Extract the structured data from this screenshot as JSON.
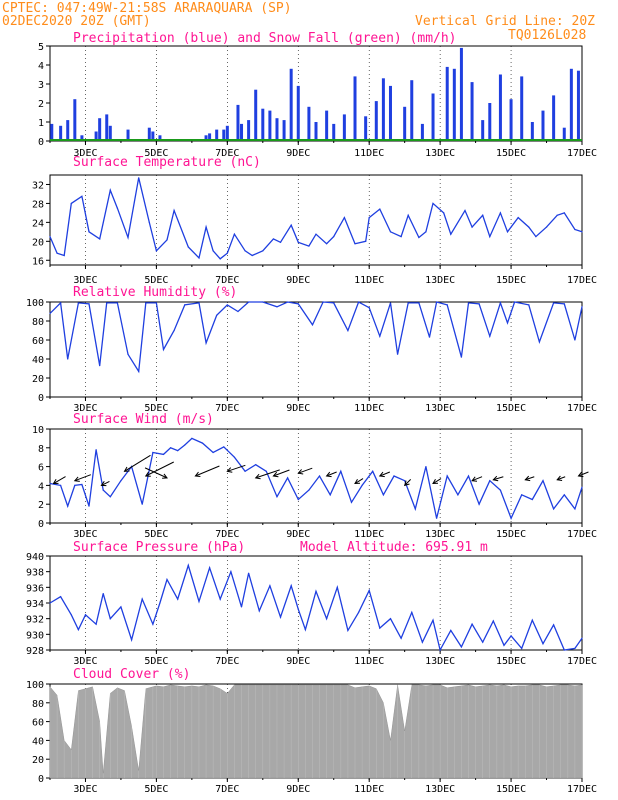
{
  "header": {
    "line1": "CPTEC:   047:49W-21:58S   ARARAQUARA (SP)",
    "line2": "02DEC2020 20Z (GMT)",
    "grid_note": "Vertical Grid Line: 20Z",
    "code": "TQ0126L028"
  },
  "x_labels": [
    "3DEC",
    "5DEC",
    "7DEC",
    "9DEC",
    "11DEC",
    "13DEC",
    "15DEC",
    "17DEC"
  ],
  "colors": {
    "header": "#ff8c1a",
    "title": "#ff1493",
    "line": "#1f3fe0",
    "bar": "#1f3fe0",
    "snow": "#1a9a1a",
    "cloud": "#a8a8a8"
  },
  "chart_data": [
    {
      "id": "precip",
      "type": "bar",
      "title": "Precipitation (blue) and Snow Fall (green) (mm/h)",
      "ylim": [
        0,
        5
      ],
      "yticks": [
        0,
        1,
        2,
        3,
        4,
        5
      ],
      "x_days": [
        2.0,
        17.0
      ],
      "series": [
        {
          "x": [
            2.05,
            2.3,
            2.5,
            2.7,
            2.9,
            3.3,
            3.4,
            3.6,
            3.7,
            4.2,
            4.8,
            4.9,
            5.1,
            6.4,
            6.5,
            6.7,
            6.9,
            7.0,
            7.3,
            7.4,
            7.6,
            7.8,
            8.0,
            8.2,
            8.4,
            8.6,
            8.8,
            9.0,
            9.3,
            9.5,
            9.8,
            10.0,
            10.3,
            10.6,
            10.9,
            11.2,
            11.4,
            11.6,
            12.0,
            12.2,
            12.5,
            12.8,
            13.2,
            13.4,
            13.6,
            13.9,
            14.2,
            14.4,
            14.7,
            15.0,
            15.3,
            15.6,
            15.9,
            16.2,
            16.5,
            16.7,
            16.9
          ],
          "values": [
            0.9,
            0.8,
            1.1,
            2.2,
            0.3,
            0.5,
            1.2,
            1.4,
            0.8,
            0.6,
            0.7,
            0.5,
            0.3,
            0.3,
            0.4,
            0.6,
            0.6,
            0.8,
            1.9,
            0.9,
            1.1,
            2.7,
            1.7,
            1.6,
            1.2,
            1.1,
            3.8,
            2.9,
            1.8,
            1.0,
            1.6,
            0.9,
            1.4,
            3.4,
            1.3,
            2.1,
            3.3,
            2.9,
            1.8,
            3.2,
            0.9,
            2.5,
            3.9,
            3.8,
            4.9,
            3.1,
            1.1,
            2.0,
            3.5,
            2.2,
            3.4,
            1.0,
            1.6,
            2.4,
            0.7,
            3.8,
            3.7
          ],
          "snow": 0
        }
      ]
    },
    {
      "id": "temp",
      "type": "line",
      "title": "Surface Temperature (nC)",
      "ylim": [
        15,
        34
      ],
      "yticks": [
        16,
        20,
        24,
        28,
        32
      ],
      "x": [
        2.0,
        2.2,
        2.4,
        2.6,
        2.9,
        3.1,
        3.4,
        3.7,
        3.9,
        4.2,
        4.5,
        4.8,
        5.0,
        5.3,
        5.5,
        5.9,
        6.2,
        6.4,
        6.6,
        6.8,
        7.0,
        7.2,
        7.5,
        7.7,
        8.0,
        8.3,
        8.5,
        8.8,
        9.0,
        9.3,
        9.5,
        9.8,
        10.0,
        10.3,
        10.6,
        10.9,
        11.0,
        11.3,
        11.6,
        11.9,
        12.1,
        12.4,
        12.6,
        12.8,
        13.1,
        13.3,
        13.7,
        13.9,
        14.2,
        14.4,
        14.7,
        14.9,
        15.2,
        15.5,
        15.7,
        16.0,
        16.3,
        16.5,
        16.8,
        17.0
      ],
      "values": [
        21.0,
        17.5,
        17.0,
        28.0,
        29.5,
        22.0,
        20.5,
        30.8,
        27.0,
        20.8,
        33.4,
        24.0,
        18.0,
        20.3,
        26.5,
        18.8,
        16.5,
        23.0,
        18.0,
        16.3,
        17.5,
        21.5,
        18.0,
        17.0,
        18.0,
        20.5,
        19.8,
        23.4,
        19.8,
        19.0,
        21.5,
        19.5,
        21.0,
        25.0,
        19.5,
        20.0,
        25.0,
        26.8,
        22.0,
        21.0,
        25.5,
        20.8,
        22.0,
        28.0,
        26.0,
        21.5,
        26.5,
        23.0,
        25.5,
        21.0,
        26.0,
        22.0,
        25.0,
        23.0,
        21.0,
        23.0,
        25.5,
        26.0,
        22.5,
        22.0
      ]
    },
    {
      "id": "rh",
      "type": "line",
      "title": "Relative Humidity (%)",
      "ylim": [
        0,
        100
      ],
      "yticks": [
        0,
        20,
        40,
        60,
        80,
        100
      ],
      "x": [
        2.0,
        2.3,
        2.5,
        2.8,
        3.1,
        3.4,
        3.6,
        3.9,
        4.2,
        4.5,
        4.7,
        5.0,
        5.2,
        5.5,
        5.8,
        6.2,
        6.4,
        6.7,
        7.0,
        7.3,
        7.6,
        8.0,
        8.4,
        8.7,
        9.0,
        9.4,
        9.7,
        10.0,
        10.4,
        10.7,
        11.0,
        11.3,
        11.6,
        11.8,
        12.1,
        12.4,
        12.7,
        12.9,
        13.2,
        13.6,
        13.8,
        14.1,
        14.4,
        14.7,
        14.9,
        15.1,
        15.5,
        15.8,
        16.2,
        16.5,
        16.8,
        17.0
      ],
      "values": [
        88,
        99,
        40,
        99,
        98,
        33,
        99,
        99,
        45,
        27,
        99,
        99,
        50,
        70,
        97,
        99,
        57,
        86,
        97,
        90,
        100,
        100,
        95,
        100,
        98,
        76,
        100,
        99,
        70,
        100,
        94,
        64,
        99,
        45,
        99,
        99,
        63,
        100,
        97,
        42,
        99,
        98,
        64,
        99,
        78,
        100,
        97,
        58,
        99,
        98,
        60,
        95
      ]
    },
    {
      "id": "wind",
      "type": "line",
      "title": "Surface Wind (m/s)",
      "ylim": [
        0,
        10
      ],
      "yticks": [
        0,
        2,
        4,
        6,
        8,
        10
      ],
      "x": [
        2.0,
        2.3,
        2.5,
        2.7,
        2.9,
        3.1,
        3.3,
        3.5,
        3.7,
        4.0,
        4.3,
        4.6,
        4.9,
        5.2,
        5.4,
        5.6,
        5.8,
        6.0,
        6.3,
        6.6,
        6.9,
        7.2,
        7.5,
        7.8,
        8.1,
        8.4,
        8.7,
        9.0,
        9.3,
        9.6,
        9.9,
        10.2,
        10.5,
        10.8,
        11.1,
        11.4,
        11.7,
        12.0,
        12.3,
        12.6,
        12.9,
        13.2,
        13.5,
        13.8,
        14.1,
        14.4,
        14.7,
        15.0,
        15.3,
        15.6,
        15.9,
        16.2,
        16.5,
        16.8,
        17.0
      ],
      "values": [
        4.2,
        4.0,
        1.8,
        4.0,
        4.1,
        1.8,
        7.8,
        3.5,
        2.8,
        4.5,
        6.0,
        2.0,
        7.5,
        7.3,
        8.0,
        7.7,
        8.3,
        9.0,
        8.5,
        7.5,
        8.1,
        7.0,
        5.5,
        6.2,
        5.5,
        2.8,
        4.8,
        2.5,
        3.5,
        5.0,
        3.0,
        5.5,
        2.2,
        4.0,
        5.5,
        3.0,
        5.0,
        4.5,
        1.5,
        6.0,
        0.5,
        5.0,
        3.0,
        5.0,
        2.0,
        4.5,
        3.5,
        0.5,
        3.0,
        2.5,
        4.5,
        1.5,
        3.0,
        1.5,
        3.8
      ],
      "arrows": [
        {
          "x": 2.1,
          "v": 4.2,
          "dx": 12,
          "dy": -7
        },
        {
          "x": 2.7,
          "v": 4.5,
          "dx": 16,
          "dy": -6
        },
        {
          "x": 3.45,
          "v": 4.0,
          "dx": 8,
          "dy": -4
        },
        {
          "x": 4.1,
          "v": 5.5,
          "dx": 26,
          "dy": -16
        },
        {
          "x": 4.7,
          "v": 5.0,
          "dx": 28,
          "dy": -14
        },
        {
          "x": 5.3,
          "v": 4.8,
          "dx": -22,
          "dy": -10
        },
        {
          "x": 6.1,
          "v": 5.0,
          "dx": 24,
          "dy": -10
        },
        {
          "x": 7.0,
          "v": 5.5,
          "dx": 18,
          "dy": -6
        },
        {
          "x": 7.8,
          "v": 4.8,
          "dx": 24,
          "dy": -8
        },
        {
          "x": 8.3,
          "v": 5.0,
          "dx": 16,
          "dy": -6
        },
        {
          "x": 9.0,
          "v": 5.3,
          "dx": 14,
          "dy": -5
        },
        {
          "x": 9.8,
          "v": 5.0,
          "dx": 10,
          "dy": -4
        },
        {
          "x": 10.6,
          "v": 4.2,
          "dx": 8,
          "dy": -5
        },
        {
          "x": 11.3,
          "v": 5.0,
          "dx": 10,
          "dy": -4
        },
        {
          "x": 12.0,
          "v": 4.0,
          "dx": 6,
          "dy": -6
        },
        {
          "x": 12.8,
          "v": 4.2,
          "dx": 8,
          "dy": -5
        },
        {
          "x": 13.9,
          "v": 4.5,
          "dx": 10,
          "dy": -4
        },
        {
          "x": 14.5,
          "v": 4.6,
          "dx": 10,
          "dy": -3
        },
        {
          "x": 15.4,
          "v": 4.6,
          "dx": 9,
          "dy": -3
        },
        {
          "x": 16.3,
          "v": 4.6,
          "dx": 8,
          "dy": -3
        },
        {
          "x": 16.9,
          "v": 5.0,
          "dx": 10,
          "dy": -4
        }
      ]
    },
    {
      "id": "press",
      "type": "line",
      "title": "Surface Pressure (hPa)",
      "subtitle": "Model Altitude: 695.91 m",
      "ylim": [
        928,
        940
      ],
      "yticks": [
        928,
        930,
        932,
        934,
        936,
        938,
        940
      ],
      "x": [
        2.0,
        2.3,
        2.6,
        2.8,
        3.0,
        3.3,
        3.5,
        3.7,
        4.0,
        4.3,
        4.6,
        4.9,
        5.1,
        5.3,
        5.6,
        5.9,
        6.2,
        6.5,
        6.8,
        7.1,
        7.4,
        7.6,
        7.9,
        8.2,
        8.5,
        8.8,
        9.0,
        9.2,
        9.5,
        9.8,
        10.1,
        10.4,
        10.7,
        11.0,
        11.3,
        11.6,
        11.9,
        12.2,
        12.5,
        12.8,
        13.0,
        13.3,
        13.6,
        13.9,
        14.2,
        14.5,
        14.8,
        15.0,
        15.3,
        15.6,
        15.9,
        16.2,
        16.5,
        16.8,
        17.0
      ],
      "values": [
        934.0,
        934.8,
        932.5,
        930.6,
        932.5,
        931.3,
        935.2,
        932.0,
        933.5,
        929.3,
        934.5,
        931.3,
        934.0,
        937.0,
        934.5,
        938.8,
        934.2,
        938.5,
        934.5,
        938.0,
        933.5,
        937.8,
        933.0,
        936.2,
        932.2,
        936.2,
        933.2,
        930.6,
        935.5,
        932.0,
        936.0,
        930.5,
        932.8,
        935.6,
        930.8,
        932.0,
        929.5,
        932.8,
        929.0,
        931.8,
        928.0,
        930.5,
        928.4,
        931.3,
        929.0,
        931.7,
        928.6,
        929.8,
        928.2,
        931.8,
        928.8,
        931.2,
        928.0,
        928.2,
        929.5
      ]
    },
    {
      "id": "cloud",
      "type": "area",
      "title": "Cloud Cover (%)",
      "ylim": [
        0,
        100
      ],
      "yticks": [
        0,
        20,
        40,
        60,
        80,
        100
      ],
      "x": [
        2.0,
        2.2,
        2.4,
        2.6,
        2.8,
        3.0,
        3.2,
        3.4,
        3.5,
        3.7,
        3.9,
        4.1,
        4.3,
        4.5,
        4.7,
        4.9,
        5.0,
        5.2,
        5.4,
        5.6,
        5.8,
        6.0,
        6.2,
        6.4,
        6.6,
        6.8,
        7.0,
        7.2,
        7.4,
        7.6,
        7.8,
        8.0,
        8.2,
        8.4,
        8.6,
        8.8,
        9.0,
        9.2,
        9.4,
        9.6,
        9.8,
        10.0,
        10.2,
        10.4,
        10.6,
        10.8,
        11.0,
        11.2,
        11.4,
        11.6,
        11.8,
        12.0,
        12.2,
        12.4,
        12.6,
        12.8,
        13.0,
        13.2,
        13.4,
        13.6,
        13.8,
        14.0,
        14.2,
        14.4,
        14.6,
        14.8,
        15.0,
        15.2,
        15.4,
        15.6,
        15.8,
        16.0,
        16.2,
        16.4,
        16.6,
        16.8,
        17.0
      ],
      "values": [
        97,
        88,
        40,
        30,
        93,
        95,
        97,
        60,
        5,
        90,
        96,
        93,
        55,
        8,
        95,
        97,
        98,
        97,
        99,
        98,
        97,
        98,
        97,
        99,
        98,
        95,
        90,
        99,
        99,
        99,
        99,
        99,
        99,
        99,
        99,
        99,
        99,
        99,
        99,
        99,
        99,
        99,
        99,
        99,
        96,
        97,
        98,
        95,
        80,
        40,
        99,
        50,
        99,
        99,
        98,
        99,
        99,
        96,
        97,
        98,
        99,
        97,
        98,
        99,
        98,
        99,
        97,
        98,
        98,
        99,
        99,
        97,
        98,
        99,
        99,
        98,
        99
      ]
    }
  ]
}
